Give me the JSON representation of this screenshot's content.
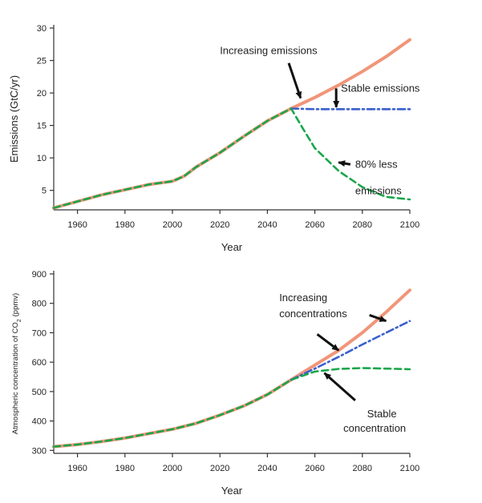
{
  "chart_data": [
    {
      "type": "line",
      "xlabel": "Year",
      "ylabel": "Emissions (GtC/yr)",
      "xlim": [
        1950,
        2100
      ],
      "ylim": [
        2,
        30
      ],
      "xticks": [
        1960,
        1980,
        2000,
        2020,
        2040,
        2060,
        2080,
        2100
      ],
      "xtick_labels": [
        "1960",
        "1980",
        "2000",
        "2020",
        "2040",
        "2060",
        "2080",
        "2100"
      ],
      "yticks": [
        5,
        10,
        15,
        20,
        25,
        30
      ],
      "ytick_labels": [
        "5",
        "10",
        "15",
        "20",
        "25",
        "30"
      ],
      "grid": false,
      "series": [
        {
          "color": "#f08a6a",
          "style": "solid",
          "x": [
            1950,
            1960,
            1970,
            1980,
            1990,
            2000,
            2005,
            2010,
            2020,
            2030,
            2040,
            2050,
            2060,
            2070,
            2080,
            2090,
            2100
          ],
          "y": [
            2.3,
            3.3,
            4.3,
            5.1,
            5.9,
            6.4,
            7.2,
            8.6,
            10.8,
            13.3,
            15.7,
            17.6,
            19.3,
            21.2,
            23.3,
            25.6,
            28.2
          ]
        },
        {
          "color": "#3a5fcd",
          "style": "dashdot",
          "x": [
            2050,
            2060,
            2070,
            2080,
            2090,
            2100
          ],
          "y": [
            17.6,
            17.5,
            17.5,
            17.5,
            17.5,
            17.5
          ]
        },
        {
          "color": "#1aa64a",
          "style": "dashed",
          "x": [
            1950,
            1960,
            1970,
            1980,
            1990,
            2000,
            2005,
            2010,
            2020,
            2030,
            2040,
            2050,
            2055,
            2060,
            2070,
            2080,
            2090,
            2100
          ],
          "y": [
            2.3,
            3.3,
            4.3,
            5.1,
            5.9,
            6.4,
            7.2,
            8.6,
            10.8,
            13.3,
            15.7,
            17.6,
            14.5,
            11.5,
            8.0,
            5.5,
            4.0,
            3.6
          ]
        }
      ],
      "annotations": [
        {
          "text": "Increasing emissions",
          "x": 2020,
          "y": 26.5,
          "arrow_to": [
            2054,
            19.2
          ]
        },
        {
          "text": "Stable emissions",
          "x": 2071,
          "y": 20.7,
          "arrow_to": [
            2069,
            17.8
          ]
        },
        {
          "text": "80% less",
          "x": 2077,
          "y": 9.0,
          "arrow_to": [
            2070,
            9.3
          ]
        },
        {
          "text": "emissions",
          "x": 2077,
          "y": 4.9,
          "arrow_to": null
        }
      ]
    },
    {
      "type": "line",
      "xlabel": "Year",
      "ylabel": "Atmospheric concentration of CO",
      "ylabel_sub": "2",
      "ylabel_unit": "(ppmv)",
      "xlim": [
        1950,
        2100
      ],
      "ylim": [
        290,
        900
      ],
      "xticks": [
        1960,
        1980,
        2000,
        2020,
        2040,
        2060,
        2080,
        2100
      ],
      "xtick_labels": [
        "1960",
        "1980",
        "2000",
        "2020",
        "2040",
        "2060",
        "2080",
        "2100"
      ],
      "yticks": [
        300,
        400,
        500,
        600,
        700,
        800,
        900
      ],
      "ytick_labels": [
        "300",
        "400",
        "500",
        "600",
        "700",
        "800",
        "900"
      ],
      "grid": false,
      "series": [
        {
          "color": "#f08a6a",
          "style": "solid",
          "x": [
            1950,
            1960,
            1970,
            1980,
            1990,
            2000,
            2010,
            2020,
            2030,
            2040,
            2050,
            2060,
            2070,
            2080,
            2090,
            2100
          ],
          "y": [
            313,
            320,
            330,
            342,
            357,
            372,
            392,
            420,
            451,
            490,
            540,
            590,
            640,
            700,
            770,
            845
          ]
        },
        {
          "color": "#3a5fcd",
          "style": "dashdot",
          "x": [
            2050,
            2060,
            2070,
            2080,
            2090,
            2100
          ],
          "y": [
            540,
            578,
            618,
            660,
            700,
            740
          ]
        },
        {
          "color": "#1aa64a",
          "style": "dashed",
          "x": [
            1950,
            1960,
            1970,
            1980,
            1990,
            2000,
            2010,
            2020,
            2030,
            2040,
            2050,
            2060,
            2070,
            2080,
            2090,
            2100
          ],
          "y": [
            313,
            320,
            330,
            342,
            357,
            372,
            392,
            420,
            451,
            490,
            540,
            568,
            577,
            580,
            578,
            576
          ]
        }
      ],
      "annotations": [
        {
          "text": "Increasing",
          "x": 2045,
          "y": 818,
          "arrow_to": null
        },
        {
          "text": "concentrations",
          "x": 2045,
          "y": 764,
          "arrow_to": [
            2090,
            740
          ]
        },
        {
          "text": "",
          "x": 2061,
          "y": 695,
          "arrow_to": [
            2070,
            640
          ]
        },
        {
          "text": "Stable",
          "x": 2082,
          "y": 423,
          "arrow_to": [
            2064,
            563
          ]
        },
        {
          "text": "concentration",
          "x": 2072,
          "y": 374,
          "arrow_to": null
        }
      ]
    }
  ]
}
